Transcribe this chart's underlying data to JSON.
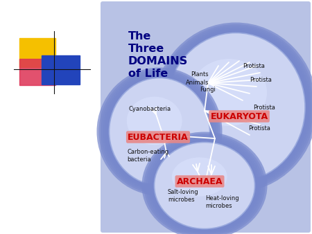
{
  "bg_color": "#c8ceea",
  "panel_color": "#b8c2e5",
  "title_text": "The\nThree\nDOMAINS\nof Life",
  "title_color": "#000080",
  "eukaryota_label": "EUKARYOTA",
  "eubacteria_label": "EUBACTERIA",
  "archaea_label": "ARCHAEA",
  "label_color": "#cc0000",
  "label_bg": "#e88888",
  "text_color": "#111111",
  "tree_color": "#ffffff",
  "ellipse_fill": "#ccd4f2",
  "ellipse_dark": "#8899cc",
  "logo_yellow": "#f5c000",
  "logo_red": "#dd3355",
  "logo_blue": "#2244bb"
}
